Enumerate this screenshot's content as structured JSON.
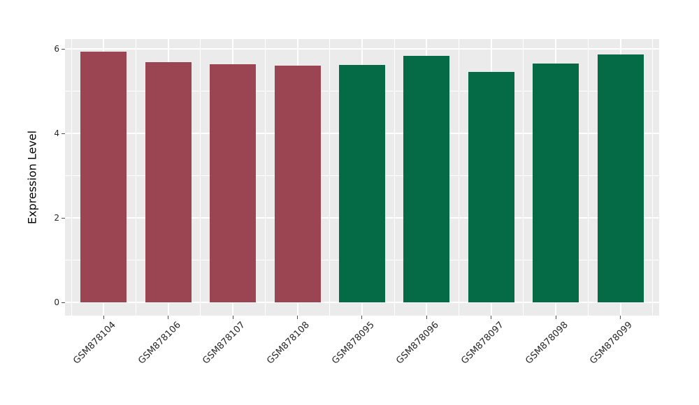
{
  "chart_data": {
    "type": "bar",
    "title": "",
    "xlabel": "",
    "ylabel": "Expression Level",
    "categories": [
      "GSM878104",
      "GSM878106",
      "GSM878107",
      "GSM878108",
      "GSM878095",
      "GSM878096",
      "GSM878097",
      "GSM878098",
      "GSM878099"
    ],
    "values": [
      5.93,
      5.69,
      5.64,
      5.6,
      5.62,
      5.84,
      5.45,
      5.65,
      5.87
    ],
    "bar_colors": [
      "#9B4452",
      "#9B4452",
      "#9B4452",
      "#9B4452",
      "#046B46",
      "#046B46",
      "#046B46",
      "#046B46",
      "#046B46"
    ],
    "group_colors": {
      "maroon_group": "#9B4452",
      "green_group": "#046B46"
    },
    "yticks": [
      0,
      2,
      4,
      6
    ],
    "ytick_labels": [
      "0",
      "2",
      "4",
      "6"
    ],
    "yticks_minor": [
      1,
      3,
      5
    ],
    "ylim": [
      -0.31,
      6.23
    ],
    "legend_position": "none",
    "grid": "white major and minor gridlines on gray panel",
    "panel_background": "#EBEBEB",
    "gridline_color": "#FFFFFF",
    "tick_label_color": "#262626"
  }
}
